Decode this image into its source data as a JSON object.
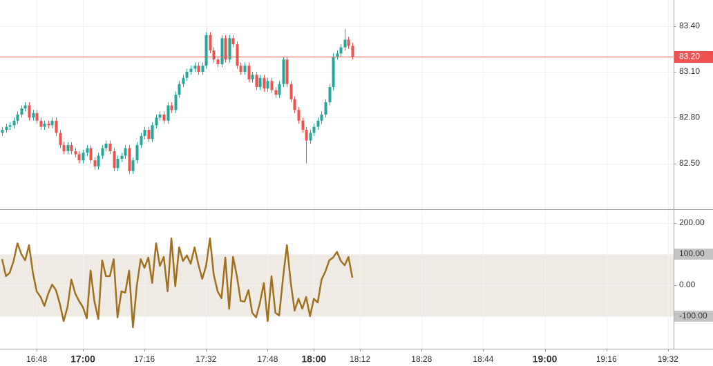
{
  "chart_data": [
    {
      "type": "candlestick",
      "x": [
        "16:39",
        "16:40",
        "16:41",
        "16:42",
        "16:43",
        "16:44",
        "16:45",
        "16:46",
        "16:47",
        "16:48",
        "16:49",
        "16:50",
        "16:51",
        "16:52",
        "16:53",
        "16:54",
        "16:55",
        "16:56",
        "16:57",
        "16:58",
        "16:59",
        "17:00",
        "17:01",
        "17:02",
        "17:03",
        "17:04",
        "17:05",
        "17:06",
        "17:07",
        "17:08",
        "17:09",
        "17:10",
        "17:11",
        "17:12",
        "17:13",
        "17:14",
        "17:15",
        "17:16",
        "17:17",
        "17:18",
        "17:19",
        "17:20",
        "17:21",
        "17:22",
        "17:23",
        "17:24",
        "17:25",
        "17:26",
        "17:27",
        "17:28",
        "17:29",
        "17:30",
        "17:31",
        "17:32",
        "17:33",
        "17:34",
        "17:35",
        "17:36",
        "17:37",
        "17:38",
        "17:39",
        "17:40",
        "17:41",
        "17:42",
        "17:43",
        "17:44",
        "17:45",
        "17:46",
        "17:47",
        "17:48",
        "17:49",
        "17:50",
        "17:51",
        "17:52",
        "17:53",
        "17:54",
        "17:55",
        "17:56",
        "17:57",
        "17:58",
        "17:59",
        "18:00",
        "18:01",
        "18:02",
        "18:03",
        "18:04",
        "18:05",
        "18:06",
        "18:07",
        "18:08",
        "18:09",
        "18:10"
      ],
      "open": [
        82.7,
        82.72,
        82.74,
        82.75,
        82.78,
        82.82,
        82.86,
        82.88,
        82.8,
        82.83,
        82.78,
        82.74,
        82.76,
        82.75,
        82.78,
        82.7,
        82.62,
        82.58,
        82.62,
        82.58,
        82.56,
        82.52,
        82.57,
        82.6,
        82.52,
        82.48,
        82.55,
        82.6,
        82.63,
        82.58,
        82.47,
        82.53,
        82.55,
        82.6,
        82.45,
        82.52,
        82.62,
        82.68,
        82.72,
        82.66,
        82.75,
        82.8,
        82.82,
        82.78,
        82.88,
        82.85,
        82.95,
        83.02,
        83.06,
        83.1,
        83.12,
        83.14,
        83.1,
        83.14,
        83.34,
        83.24,
        83.18,
        83.15,
        83.32,
        83.18,
        83.32,
        83.28,
        83.14,
        83.1,
        83.14,
        83.05,
        83.08,
        83.0,
        83.06,
        82.99,
        83.04,
        82.98,
        82.95,
        83.02,
        83.18,
        83.02,
        82.92,
        82.85,
        82.78,
        82.72,
        82.65,
        82.7,
        82.74,
        82.78,
        82.82,
        82.9,
        83.0,
        83.2,
        83.22,
        83.26,
        83.31,
        83.27
      ],
      "high": [
        82.74,
        82.76,
        82.77,
        82.8,
        82.84,
        82.88,
        82.9,
        82.9,
        82.85,
        82.85,
        82.8,
        82.78,
        82.78,
        82.8,
        82.8,
        82.72,
        82.64,
        82.64,
        82.64,
        82.6,
        82.58,
        82.59,
        82.62,
        82.62,
        82.54,
        82.57,
        82.62,
        82.65,
        82.65,
        82.6,
        82.55,
        82.57,
        82.62,
        82.62,
        82.54,
        82.64,
        82.7,
        82.74,
        82.74,
        82.77,
        82.82,
        82.84,
        82.84,
        82.9,
        82.9,
        82.97,
        83.04,
        83.08,
        83.12,
        83.14,
        83.16,
        83.16,
        83.16,
        83.36,
        83.36,
        83.26,
        83.2,
        83.34,
        83.34,
        83.34,
        83.34,
        83.3,
        83.16,
        83.16,
        83.16,
        83.1,
        83.1,
        83.08,
        83.08,
        83.06,
        83.06,
        83.0,
        83.04,
        83.2,
        83.2,
        83.04,
        82.94,
        82.87,
        82.8,
        82.74,
        82.72,
        82.76,
        82.8,
        82.84,
        82.92,
        83.02,
        83.22,
        83.24,
        83.28,
        83.38,
        83.33,
        83.29
      ],
      "low": [
        82.68,
        82.7,
        82.72,
        82.73,
        82.76,
        82.8,
        82.84,
        82.78,
        82.78,
        82.76,
        82.72,
        82.72,
        82.73,
        82.73,
        82.68,
        82.6,
        82.56,
        82.56,
        82.56,
        82.54,
        82.5,
        82.5,
        82.55,
        82.5,
        82.46,
        82.46,
        82.53,
        82.58,
        82.56,
        82.45,
        82.45,
        82.51,
        82.53,
        82.43,
        82.43,
        82.5,
        82.6,
        82.66,
        82.64,
        82.64,
        82.73,
        82.78,
        82.76,
        82.76,
        82.83,
        82.83,
        82.93,
        83.0,
        83.04,
        83.08,
        83.1,
        83.08,
        83.08,
        83.12,
        83.22,
        83.16,
        83.13,
        83.13,
        83.16,
        83.16,
        83.26,
        83.12,
        83.08,
        83.08,
        83.03,
        83.03,
        82.98,
        82.98,
        82.97,
        82.97,
        82.96,
        82.93,
        82.93,
        83.0,
        83.0,
        82.9,
        82.83,
        82.76,
        82.7,
        82.5,
        82.63,
        82.68,
        82.72,
        82.76,
        82.8,
        82.88,
        82.98,
        83.18,
        83.2,
        83.24,
        83.25,
        83.18
      ],
      "close": [
        82.72,
        82.74,
        82.75,
        82.78,
        82.82,
        82.86,
        82.88,
        82.8,
        82.83,
        82.78,
        82.74,
        82.76,
        82.75,
        82.78,
        82.7,
        82.62,
        82.58,
        82.62,
        82.58,
        82.56,
        82.52,
        82.57,
        82.6,
        82.52,
        82.48,
        82.55,
        82.6,
        82.63,
        82.58,
        82.47,
        82.53,
        82.55,
        82.6,
        82.45,
        82.52,
        82.62,
        82.68,
        82.72,
        82.66,
        82.75,
        82.8,
        82.82,
        82.78,
        82.88,
        82.85,
        82.95,
        83.02,
        83.06,
        83.1,
        83.12,
        83.14,
        83.1,
        83.14,
        83.34,
        83.24,
        83.18,
        83.15,
        83.32,
        83.18,
        83.32,
        83.28,
        83.14,
        83.1,
        83.14,
        83.05,
        83.08,
        83.0,
        83.06,
        82.99,
        83.04,
        82.98,
        82.95,
        83.02,
        83.18,
        83.02,
        82.92,
        82.85,
        82.78,
        82.72,
        82.65,
        82.7,
        82.74,
        82.78,
        82.82,
        82.9,
        83.0,
        83.2,
        83.22,
        83.26,
        83.31,
        83.27,
        83.2
      ],
      "up_color": "#26a69a",
      "down_color": "#ef5350",
      "xlim": [
        "16:39",
        "19:34"
      ],
      "ylim": [
        82.2,
        83.57
      ],
      "yticks": [
        {
          "value": 82.5,
          "label": "82.50"
        },
        {
          "value": 82.8,
          "label": "82.80"
        },
        {
          "value": 83.1,
          "label": "83.10"
        },
        {
          "value": 83.4,
          "label": "83.40"
        }
      ],
      "last_price": {
        "value": 83.2,
        "label": "83.20"
      },
      "last_price_color": "#ef5350",
      "grid": true
    },
    {
      "type": "line",
      "x": [
        "16:39",
        "16:40",
        "16:41",
        "16:42",
        "16:43",
        "16:44",
        "16:45",
        "16:46",
        "16:47",
        "16:48",
        "16:49",
        "16:50",
        "16:51",
        "16:52",
        "16:53",
        "16:54",
        "16:55",
        "16:56",
        "16:57",
        "16:58",
        "16:59",
        "17:00",
        "17:01",
        "17:02",
        "17:03",
        "17:04",
        "17:05",
        "17:06",
        "17:07",
        "17:08",
        "17:09",
        "17:10",
        "17:11",
        "17:12",
        "17:13",
        "17:14",
        "17:15",
        "17:16",
        "17:17",
        "17:18",
        "17:19",
        "17:20",
        "17:21",
        "17:22",
        "17:23",
        "17:24",
        "17:25",
        "17:26",
        "17:27",
        "17:28",
        "17:29",
        "17:30",
        "17:31",
        "17:32",
        "17:33",
        "17:34",
        "17:35",
        "17:36",
        "17:37",
        "17:38",
        "17:39",
        "17:40",
        "17:41",
        "17:42",
        "17:43",
        "17:44",
        "17:45",
        "17:46",
        "17:47",
        "17:48",
        "17:49",
        "17:50",
        "17:51",
        "17:52",
        "17:53",
        "17:54",
        "17:55",
        "17:56",
        "17:57",
        "17:58",
        "17:59",
        "18:00",
        "18:01",
        "18:02",
        "18:03",
        "18:04",
        "18:05",
        "18:06",
        "18:07",
        "18:08",
        "18:09",
        "18:10"
      ],
      "values": [
        84,
        29,
        40,
        78,
        135,
        100,
        80,
        129,
        40,
        -20,
        -38,
        -67,
        -27,
        2,
        -16,
        -60,
        -116,
        -71,
        18,
        -27,
        -51,
        -71,
        -107,
        47,
        -53,
        -109,
        80,
        29,
        29,
        84,
        -104,
        -20,
        -24,
        47,
        -136,
        -2,
        84,
        56,
        89,
        7,
        135,
        62,
        91,
        -20,
        151,
        -4,
        122,
        78,
        96,
        69,
        122,
        67,
        20,
        62,
        151,
        33,
        -20,
        -42,
        89,
        -76,
        91,
        29,
        -51,
        -53,
        -16,
        -89,
        -104,
        -56,
        7,
        -116,
        29,
        -89,
        -98,
        24,
        129,
        7,
        -82,
        -44,
        -76,
        -38,
        -100,
        -44,
        -56,
        18,
        44,
        80,
        89,
        107,
        78,
        64,
        91,
        24
      ],
      "color": "#a0701f",
      "xlim": [
        "16:39",
        "19:34"
      ],
      "ylim": [
        -205,
        238
      ],
      "yticks": [
        {
          "value": -100,
          "label": "-100.00"
        },
        {
          "value": 0,
          "label": "0.00"
        },
        {
          "value": 100,
          "label": "100.00"
        },
        {
          "value": 200,
          "label": "200.00"
        }
      ],
      "band": [
        -100,
        100
      ],
      "band_color": "#efebe4",
      "xticks": [
        "16:48",
        "17:00",
        "17:16",
        "17:32",
        "17:48",
        "18:00",
        "18:12",
        "18:28",
        "18:44",
        "19:00",
        "19:16",
        "19:32"
      ],
      "grid": true
    }
  ]
}
